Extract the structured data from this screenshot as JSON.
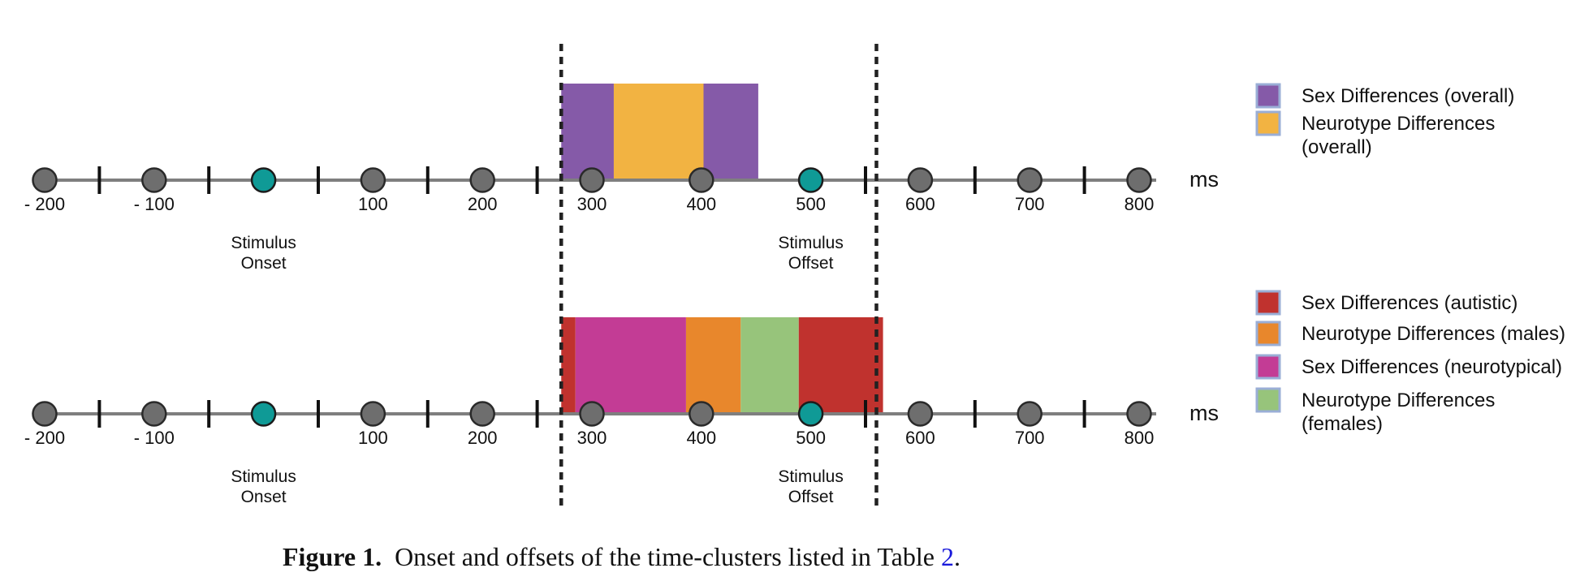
{
  "caption": {
    "figure_label": "Figure 1.",
    "text_before_ref": "Onset and offsets of the time-clusters listed in Table",
    "table_ref": "2",
    "text_after_ref": "."
  },
  "chart_data": {
    "type": "timeline",
    "x_unit_label": "ms",
    "tick_labels": [
      "- 200",
      "- 100",
      "100",
      "200",
      "300",
      "400",
      "500",
      "600",
      "700",
      "800"
    ],
    "tick_values": [
      -200,
      -100,
      100,
      200,
      300,
      400,
      500,
      600,
      700,
      800
    ],
    "stimulus_onset": {
      "value": 0,
      "label_lines": [
        "Stimulus",
        "Onset"
      ]
    },
    "stimulus_offset": {
      "value": 500,
      "label_lines": [
        "Stimulus",
        "Offset"
      ]
    },
    "dashed_lines": [
      272,
      560
    ],
    "colors": {
      "axis": "#7f7f7f",
      "node": "#6e6e6e",
      "stimulus_node": "#0f9a96",
      "dash": "#222222",
      "legend_border": "#9aaed6"
    },
    "panels": [
      {
        "clusters": [
          {
            "start": 272,
            "end": 320,
            "color": "#855aa8"
          },
          {
            "start": 320,
            "end": 402,
            "color": "#f2b342"
          },
          {
            "start": 402,
            "end": 452,
            "color": "#855aa8"
          }
        ],
        "legend": [
          {
            "lines": [
              "Sex Differences (overall)"
            ],
            "color": "#855aa8"
          },
          {
            "lines": [
              "Neurotype Differences",
              "(overall)"
            ],
            "color": "#f2b342"
          }
        ]
      },
      {
        "clusters": [
          {
            "start": 272,
            "end": 285,
            "color": "#c0322e"
          },
          {
            "start": 285,
            "end": 386,
            "color": "#c33c95"
          },
          {
            "start": 386,
            "end": 436,
            "color": "#e8872c"
          },
          {
            "start": 436,
            "end": 489,
            "color": "#97c47b"
          },
          {
            "start": 489,
            "end": 566,
            "color": "#c0322e"
          }
        ],
        "legend": [
          {
            "lines": [
              "Sex Differences (autistic)"
            ],
            "color": "#c0322e"
          },
          {
            "lines": [
              "Neurotype Differences (males)"
            ],
            "color": "#e8872c"
          },
          {
            "lines": [
              "Sex Differences (neurotypical)"
            ],
            "color": "#c33c95"
          },
          {
            "lines": [
              "Neurotype Differences",
              "(females)"
            ],
            "color": "#97c47b"
          }
        ]
      }
    ]
  }
}
